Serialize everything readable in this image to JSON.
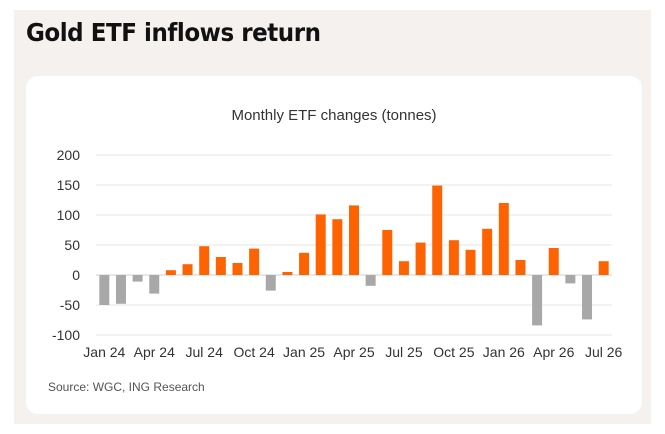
{
  "page": {
    "headline": "Gold ETF inflows return",
    "source": "Source: WGC, ING Research"
  },
  "colors": {
    "positive": "#ff6200",
    "negative": "#a8a8a8",
    "grid": "#e5e5e5",
    "zero_line": "#cfcfcf"
  },
  "chart_data": {
    "type": "bar",
    "title": "Monthly ETF changes (tonnes)",
    "xlabel": "",
    "ylabel": "",
    "ylim": [
      -100,
      200
    ],
    "yticks": [
      200,
      150,
      100,
      50,
      0,
      -50,
      -100
    ],
    "grid": true,
    "categories": [
      "Jan 24",
      "Feb 24",
      "Mar 24",
      "Apr 24",
      "May 24",
      "Jun 24",
      "Jul 24",
      "Aug 24",
      "Sep 24",
      "Oct 24",
      "Nov 24",
      "Dec 24",
      "Jan 25",
      "Feb 25",
      "Mar 25",
      "Apr 25",
      "May 25",
      "Jun 25",
      "Jul 25",
      "Aug 25",
      "Sep 25",
      "Oct 25",
      "Nov 25",
      "Dec 25",
      "Jan 26",
      "Feb 26",
      "Mar 26",
      "Apr 26",
      "May 26",
      "Jun 26",
      "Jul 26"
    ],
    "xtick_labels": [
      "Jan 24",
      "Apr 24",
      "Jul 24",
      "Oct 24",
      "Jan 25",
      "Apr 25",
      "Jul 25",
      "Oct 25",
      "Jan 26",
      "Apr 26",
      "Jul 26"
    ],
    "values": [
      -50,
      -48,
      -11,
      -31,
      8,
      18,
      48,
      30,
      20,
      44,
      -26,
      5,
      37,
      101,
      93,
      116,
      -18,
      75,
      23,
      54,
      149,
      58,
      42,
      77,
      120,
      25,
      -84,
      45,
      -14,
      -74,
      23
    ]
  }
}
